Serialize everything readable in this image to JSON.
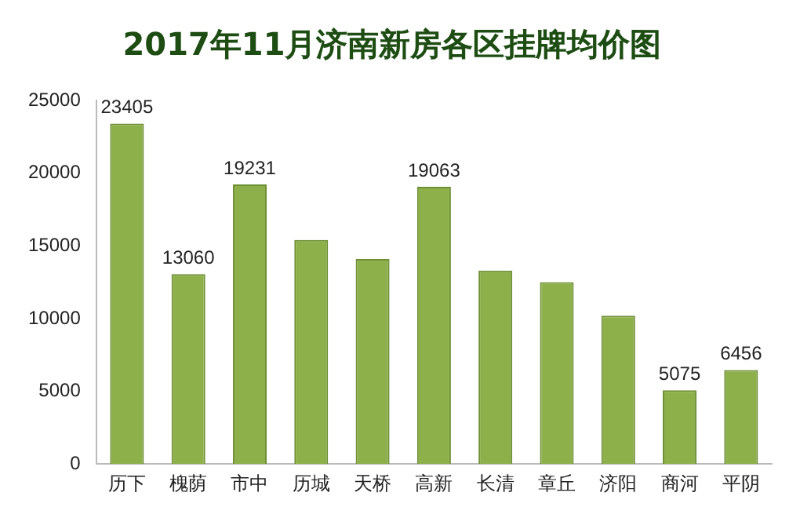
{
  "chart_data": {
    "type": "bar",
    "title": "2017年11月济南新房各区挂牌均价图",
    "categories": [
      "历下",
      "槐荫",
      "市中",
      "历城",
      "天桥",
      "高新",
      "长清",
      "章丘",
      "济阳",
      "商河",
      "平阴"
    ],
    "values": [
      23405,
      13060,
      19231,
      15400,
      14100,
      19063,
      13300,
      12500,
      10200,
      5075,
      6456
    ],
    "value_labels": [
      "23405",
      "13060",
      "19231",
      null,
      null,
      "19063",
      null,
      null,
      null,
      "5075",
      "6456"
    ],
    "color": "#8db04a",
    "ylim": [
      0,
      25000
    ],
    "yticks": [
      0,
      5000,
      10000,
      15000,
      20000,
      25000
    ],
    "grid": false,
    "legend": false
  }
}
